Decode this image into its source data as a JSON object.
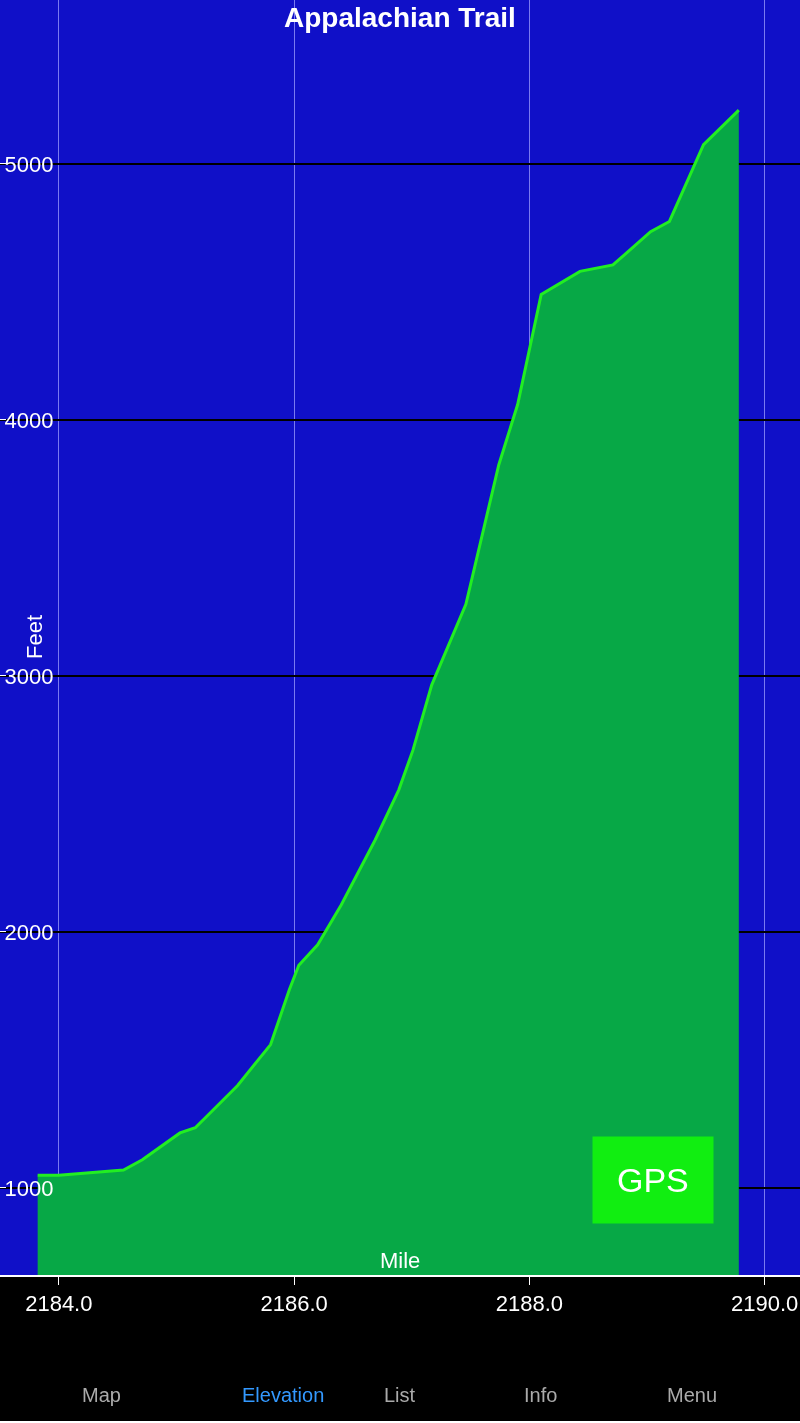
{
  "chart_data": {
    "type": "area",
    "title": "Appalachian Trail",
    "xlabel": "Mile",
    "ylabel": "Feet",
    "x": [
      2183.82,
      2184.0,
      2184.55,
      2184.71,
      2185.03,
      2185.16,
      2185.52,
      2185.8,
      2185.96,
      2186.04,
      2186.2,
      2186.4,
      2186.69,
      2186.89,
      2187.01,
      2187.17,
      2187.46,
      2187.74,
      2187.9,
      2188.1,
      2188.43,
      2188.71,
      2189.03,
      2189.19,
      2189.48,
      2189.78
    ],
    "series": [
      {
        "color": "#07a846",
        "values": [
          1050,
          1050,
          1070,
          1110,
          1215,
          1235,
          1400,
          1560,
          1775,
          1870,
          1950,
          2105,
          2360,
          2555,
          2710,
          2965,
          3280,
          3825,
          4060,
          4490,
          4580,
          4605,
          4735,
          4775,
          5075,
          5210
        ]
      }
    ],
    "xlim": [
      2183.5,
      2190.3
    ],
    "ylim": [
      660,
      5640
    ],
    "xticks": [
      {
        "value": 2184,
        "label": "2184.0"
      },
      {
        "value": 2186,
        "label": "2186.0"
      },
      {
        "value": 2188,
        "label": "2188.0"
      },
      {
        "value": 2190,
        "label": "2190.0"
      }
    ],
    "yticks": [
      1000,
      2000,
      3000,
      4000,
      5000
    ],
    "grid": true,
    "annotations": [
      "GPS",
      "Map",
      "Elevation",
      "List",
      "Info",
      "Menu"
    ]
  }
}
